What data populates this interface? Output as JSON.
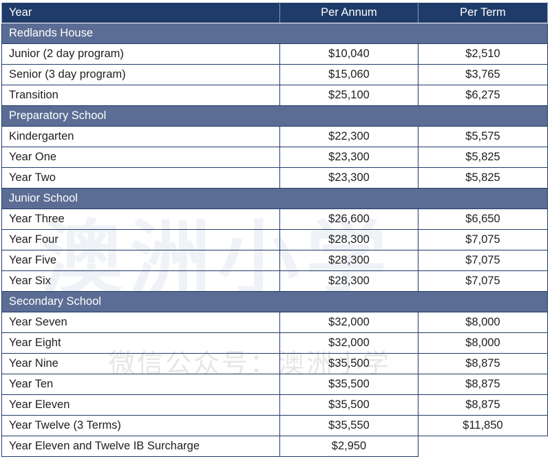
{
  "header": {
    "col_year": "Year",
    "col_annum": "Per Annum",
    "col_term": "Per Term"
  },
  "sections": [
    {
      "title": "Redlands House",
      "rows": [
        {
          "year": "Junior (2 day program)",
          "annum": "$10,040",
          "term": "$2,510"
        },
        {
          "year": "Senior (3 day program)",
          "annum": "$15,060",
          "term": "$3,765"
        },
        {
          "year": "Transition",
          "annum": "$25,100",
          "term": "$6,275"
        }
      ]
    },
    {
      "title": "Preparatory School",
      "rows": [
        {
          "year": "Kindergarten",
          "annum": "$22,300",
          "term": "$5,575"
        },
        {
          "year": "Year One",
          "annum": "$23,300",
          "term": "$5,825"
        },
        {
          "year": "Year Two",
          "annum": "$23,300",
          "term": "$5,825"
        }
      ]
    },
    {
      "title": "Junior School",
      "rows": [
        {
          "year": "Year Three",
          "annum": "$26,600",
          "term": "$6,650"
        },
        {
          "year": "Year Four",
          "annum": "$28,300",
          "term": "$7,075"
        },
        {
          "year": "Year Five",
          "annum": "$28,300",
          "term": "$7,075"
        },
        {
          "year": "Year Six",
          "annum": "$28,300",
          "term": "$7,075"
        }
      ]
    },
    {
      "title": "Secondary School",
      "rows": [
        {
          "year": "Year Seven",
          "annum": "$32,000",
          "term": "$8,000"
        },
        {
          "year": "Year Eight",
          "annum": "$32,000",
          "term": "$8,000"
        },
        {
          "year": "Year Nine",
          "annum": "$35,500",
          "term": "$8,875"
        },
        {
          "year": "Year Ten",
          "annum": "$35,500",
          "term": "$8,875"
        },
        {
          "year": "Year Eleven",
          "annum": "$35,500",
          "term": "$8,875"
        },
        {
          "year": "Year Twelve (3 Terms)",
          "annum": "$35,550",
          "term": "$11,850"
        },
        {
          "year": "Year Eleven and Twelve IB Surcharge",
          "annum": "$2,950",
          "term": ""
        }
      ]
    }
  ],
  "watermark": {
    "large": "澳洲小学",
    "small": "微信公众号：澳洲小学"
  }
}
